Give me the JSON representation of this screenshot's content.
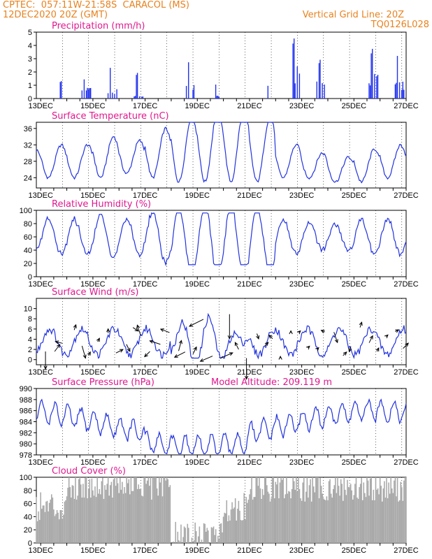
{
  "header": {
    "line1": "CPTEC:  057:11W-21:58S  CARACOL (MS)",
    "line2": "12DEC2020 20Z (GMT)",
    "right1": "Vertical Grid Line: 20Z",
    "right2": "TQ0126L028"
  },
  "colors": {
    "header": "#e8821e",
    "title": "#e0198f",
    "line": "#2233dd",
    "bar": "#2233ee",
    "cloud": "#a9a9a9",
    "arrow": "#000000"
  },
  "x_axis": {
    "labels": [
      "13DEC",
      "15DEC",
      "17DEC",
      "19DEC",
      "21DEC",
      "23DEC",
      "25DEC",
      "27DEC"
    ]
  },
  "chart_data": [
    {
      "type": "bar",
      "id": "precipitation",
      "title": "Precipitation (mm/h)",
      "ylim": [
        0,
        5
      ],
      "yticks": [
        0,
        1,
        2,
        3,
        4,
        5
      ],
      "note": "hourly values starting 12DEC2020 20Z",
      "values": []
    },
    {
      "type": "line",
      "id": "temperature",
      "title": "Surface Temperature (nC)",
      "ylim": [
        21.5,
        37.5
      ],
      "yticks": [
        24,
        28,
        32,
        36
      ],
      "values": []
    },
    {
      "type": "line",
      "id": "humidity",
      "title": "Relative Humidity (%)",
      "ylim": [
        0,
        100
      ],
      "yticks": [
        0,
        20,
        40,
        60,
        80,
        100
      ],
      "values": []
    },
    {
      "type": "line",
      "id": "wind",
      "title": "Surface Wind (m/s)",
      "ylim": [
        -1,
        12
      ],
      "yticks": [
        0,
        2,
        4,
        6,
        8,
        10
      ],
      "values": [],
      "arrows": [
        {
          "day": 0.35,
          "u": 0,
          "v": -5
        },
        {
          "day": 0.7,
          "u": 1.5,
          "v": 2
        },
        {
          "day": 1.0,
          "u": -2,
          "v": 0.5
        },
        {
          "day": 1.45,
          "u": 0.5,
          "v": 1.5
        },
        {
          "day": 1.75,
          "u": 1,
          "v": -3.5
        },
        {
          "day": 2.0,
          "u": 0.5,
          "v": 1
        },
        {
          "day": 2.35,
          "u": 0.5,
          "v": 1
        },
        {
          "day": 2.75,
          "u": 0,
          "v": 1.2
        },
        {
          "day": 3.05,
          "u": 2,
          "v": 1
        },
        {
          "day": 3.45,
          "u": 1,
          "v": -2
        },
        {
          "day": 3.7,
          "u": 1.5,
          "v": -1
        },
        {
          "day": 4.0,
          "u": -1,
          "v": 3
        },
        {
          "day": 4.35,
          "u": -1.5,
          "v": -1.5
        },
        {
          "day": 4.75,
          "u": -3,
          "v": 1
        },
        {
          "day": 5.1,
          "u": -2.5,
          "v": 1
        },
        {
          "day": 5.45,
          "u": 0.8,
          "v": 3
        },
        {
          "day": 5.7,
          "u": -3,
          "v": -1.5
        },
        {
          "day": 6.0,
          "u": 1,
          "v": 2
        },
        {
          "day": 6.4,
          "u": -4,
          "v": -2
        },
        {
          "day": 6.75,
          "u": -3.5,
          "v": -1.5
        },
        {
          "day": 7.05,
          "u": 3.5,
          "v": 1.5
        },
        {
          "day": 7.4,
          "u": 0,
          "v": -7
        },
        {
          "day": 7.75,
          "u": -1,
          "v": 2
        },
        {
          "day": 8.05,
          "u": 0,
          "v": -6
        },
        {
          "day": 8.45,
          "u": 0.5,
          "v": -1.5
        },
        {
          "day": 8.75,
          "u": 1,
          "v": 1
        },
        {
          "day": 9.05,
          "u": -1,
          "v": 1
        },
        {
          "day": 9.35,
          "u": 0,
          "v": 0.5
        },
        {
          "day": 9.75,
          "u": 0,
          "v": 0.5
        },
        {
          "day": 10.05,
          "u": 0.5,
          "v": 0.5
        },
        {
          "day": 10.4,
          "u": 0.5,
          "v": 0.5
        },
        {
          "day": 10.75,
          "u": 0.5,
          "v": 0.5
        },
        {
          "day": 11.05,
          "u": -1,
          "v": 0.5
        },
        {
          "day": 11.4,
          "u": 1,
          "v": -3
        },
        {
          "day": 11.75,
          "u": 1,
          "v": 1
        },
        {
          "day": 12.05,
          "u": -0.5,
          "v": -1.5
        },
        {
          "day": 12.4,
          "u": 0.5,
          "v": 1.5
        },
        {
          "day": 12.75,
          "u": 1,
          "v": 2
        },
        {
          "day": 13.05,
          "u": 0.5,
          "v": 1
        },
        {
          "day": 13.4,
          "u": 0.5,
          "v": 0.5
        },
        {
          "day": 13.75,
          "u": 1,
          "v": 0.5
        },
        {
          "day": 14.05,
          "u": 1.5,
          "v": 1.5
        }
      ]
    },
    {
      "type": "line",
      "id": "pressure",
      "title": "Surface Pressure (hPa)",
      "subtitle": "Model Altitude: 209.119 m",
      "ylim": [
        978,
        990
      ],
      "yticks": [
        978,
        980,
        982,
        984,
        986,
        988,
        990
      ],
      "values": []
    },
    {
      "type": "area",
      "id": "cloud",
      "title": "Cloud Cover (%)",
      "ylim": [
        0,
        100
      ],
      "yticks": [
        0,
        20,
        40,
        60,
        80,
        100
      ],
      "values": []
    }
  ]
}
